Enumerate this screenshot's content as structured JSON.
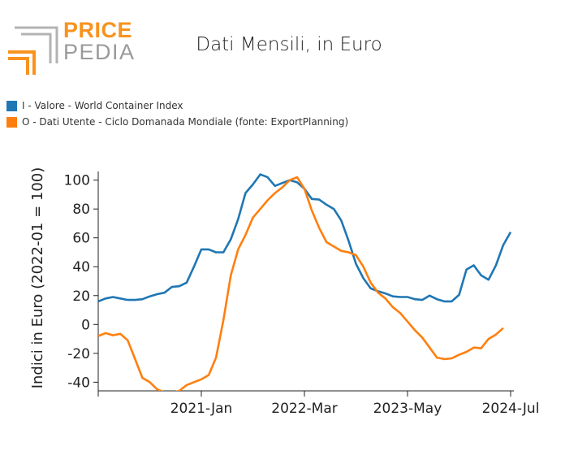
{
  "brand": {
    "line1": "PRICE",
    "line2": "PEDIA",
    "orange": "#f7931e",
    "gray": "#9a9a9a"
  },
  "title": "Dati Mensili, in Euro",
  "legend": [
    {
      "label": "I - Valore - World Container Index",
      "color": "#1f77b4"
    },
    {
      "label": "O - Dati Utente - Ciclo Domanada Mondiale (fonte: ExportPlanning)",
      "color": "#ff7f0e"
    }
  ],
  "chart_data": {
    "type": "line",
    "ylabel": "Indici in Euro (2022-01 = 100)",
    "xlabel": "",
    "ylim": [
      -46,
      106
    ],
    "yticks": [
      -40,
      -20,
      0,
      20,
      40,
      60,
      80,
      100
    ],
    "xticks": [
      {
        "x": "2019-11",
        "label": ""
      },
      {
        "x": "2021-01",
        "label": "2021-Jan"
      },
      {
        "x": "2022-03",
        "label": "2022-Mar"
      },
      {
        "x": "2023-05",
        "label": "2023-May"
      },
      {
        "x": "2024-07",
        "label": "2024-Jul"
      }
    ],
    "grid": false,
    "series": [
      {
        "name": "I - Valore - World Container Index",
        "color": "#1f77b4",
        "x": [
          "2019-11",
          "2019-12",
          "2020-01",
          "2020-02",
          "2020-03",
          "2020-04",
          "2020-05",
          "2020-06",
          "2020-07",
          "2020-08",
          "2020-09",
          "2020-10",
          "2020-11",
          "2020-12",
          "2021-01",
          "2021-02",
          "2021-03",
          "2021-04",
          "2021-05",
          "2021-06",
          "2021-07",
          "2021-08",
          "2021-09",
          "2021-10",
          "2021-11",
          "2021-12",
          "2022-01",
          "2022-02",
          "2022-03",
          "2022-04",
          "2022-05",
          "2022-06",
          "2022-07",
          "2022-08",
          "2022-09",
          "2022-10",
          "2022-11",
          "2022-12",
          "2023-01",
          "2023-02",
          "2023-03",
          "2023-04",
          "2023-05",
          "2023-06",
          "2023-07",
          "2023-08",
          "2023-09",
          "2023-10",
          "2023-11",
          "2023-12",
          "2024-01",
          "2024-02",
          "2024-03",
          "2024-04",
          "2024-05",
          "2024-06",
          "2024-07"
        ],
        "values": [
          16,
          18,
          19,
          18,
          17,
          17,
          17.5,
          19.5,
          21,
          22,
          26,
          26.5,
          29,
          40,
          52,
          52,
          50,
          50,
          59,
          73,
          91,
          97,
          104,
          102,
          96,
          98,
          100,
          98.5,
          94,
          87,
          86.5,
          83,
          80,
          72,
          58,
          42,
          32,
          25,
          23,
          21.5,
          19.5,
          19,
          19,
          17.5,
          17,
          20,
          17.5,
          16,
          16,
          20.5,
          38,
          41,
          34,
          31,
          41,
          55,
          64
        ]
      },
      {
        "name": "O - Dati Utente - Ciclo Domanada Mondiale (fonte: ExportPlanning)",
        "color": "#ff7f0e",
        "x": [
          "2019-11",
          "2019-12",
          "2020-01",
          "2020-02",
          "2020-03",
          "2020-04",
          "2020-05",
          "2020-06",
          "2020-07",
          "2020-08",
          "2020-09",
          "2020-10",
          "2020-11",
          "2020-12",
          "2021-01",
          "2021-02",
          "2021-03",
          "2021-04",
          "2021-05",
          "2021-06",
          "2021-07",
          "2021-08",
          "2021-09",
          "2021-10",
          "2021-11",
          "2021-12",
          "2022-01",
          "2022-02",
          "2022-03",
          "2022-04",
          "2022-05",
          "2022-06",
          "2022-07",
          "2022-08",
          "2022-09",
          "2022-10",
          "2022-11",
          "2022-12",
          "2023-01",
          "2023-02",
          "2023-03",
          "2023-04",
          "2023-05",
          "2023-06",
          "2023-07",
          "2023-08",
          "2023-09",
          "2023-10",
          "2023-11",
          "2023-12",
          "2024-01",
          "2024-02",
          "2024-03",
          "2024-04",
          "2024-05",
          "2024-06"
        ],
        "values": [
          -8,
          -6,
          -7.5,
          -6.5,
          -11,
          -24,
          -37,
          -40,
          -45,
          -47,
          -47.5,
          -46,
          -42,
          -40,
          -38,
          -35,
          -23,
          3,
          34,
          52,
          62,
          74,
          80,
          86,
          91,
          95,
          100,
          102,
          94,
          79,
          67,
          57,
          54,
          51,
          50,
          48,
          40,
          29,
          22,
          18,
          12,
          8,
          2,
          -4,
          -9,
          -16,
          -23,
          -24,
          -23.5,
          -21,
          -19,
          -16,
          -16.5,
          -10,
          -7,
          -2.5
        ]
      }
    ]
  }
}
